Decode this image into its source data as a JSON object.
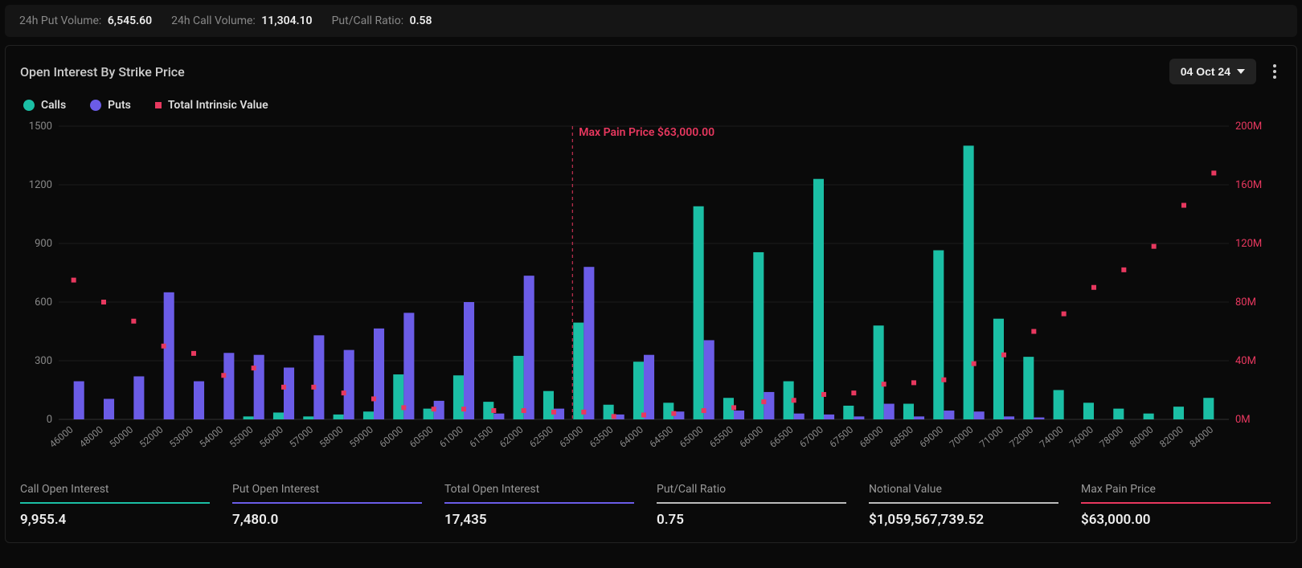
{
  "top_metrics": {
    "put_volume_label": "24h Put Volume:",
    "put_volume_value": "6,545.60",
    "call_volume_label": "24h Call Volume:",
    "call_volume_value": "11,304.10",
    "pc_ratio_label": "Put/Call Ratio:",
    "pc_ratio_value": "0.58"
  },
  "panel": {
    "title": "Open Interest By Strike Price",
    "date_selected": "04 Oct 24"
  },
  "legend": {
    "calls": "Calls",
    "puts": "Puts",
    "tiv": "Total Intrinsic Value"
  },
  "chart": {
    "type": "bar+scatter",
    "left_y": {
      "min": 0,
      "max": 1500,
      "step": 300,
      "ticks": [
        0,
        300,
        600,
        900,
        1200,
        1500
      ]
    },
    "right_y": {
      "min": 0,
      "max": 200,
      "step": 40,
      "ticks": [
        0,
        40,
        80,
        120,
        160,
        200
      ],
      "suffix": "M"
    },
    "max_pain_label": "Max Pain Price $63,000.00",
    "max_pain_strike": "63000",
    "colors": {
      "calls": "#1bbfa5",
      "puts": "#6b5ce7",
      "tiv": "#e8385f",
      "grid": "#1c1c1c",
      "axis_text": "#888",
      "bg": "#0a0a0a"
    },
    "bar_group_gap_ratio": 0.3,
    "strikes": [
      "46000",
      "48000",
      "50000",
      "52000",
      "53000",
      "54000",
      "55000",
      "56000",
      "57000",
      "58000",
      "59000",
      "60000",
      "60500",
      "61000",
      "61500",
      "62000",
      "62500",
      "63000",
      "63500",
      "64000",
      "64500",
      "65000",
      "65500",
      "66000",
      "66500",
      "67000",
      "67500",
      "68000",
      "68500",
      "69000",
      "70000",
      "71000",
      "72000",
      "74000",
      "76000",
      "78000",
      "80000",
      "82000",
      "84000"
    ],
    "calls": [
      0,
      0,
      0,
      0,
      0,
      0,
      15,
      35,
      15,
      25,
      40,
      230,
      55,
      225,
      90,
      325,
      145,
      495,
      75,
      295,
      85,
      1090,
      110,
      855,
      195,
      1230,
      70,
      480,
      80,
      865,
      1400,
      515,
      320,
      150,
      85,
      55,
      30,
      65,
      110
    ],
    "puts": [
      195,
      105,
      220,
      650,
      195,
      340,
      330,
      265,
      430,
      355,
      465,
      545,
      95,
      600,
      30,
      735,
      55,
      780,
      25,
      330,
      40,
      405,
      45,
      140,
      30,
      25,
      15,
      80,
      15,
      45,
      40,
      15,
      10,
      0,
      0,
      0,
      0,
      0,
      0
    ],
    "tiv": [
      95,
      80,
      67,
      50,
      45,
      30,
      35,
      22,
      22,
      18,
      14,
      8,
      7,
      7,
      6,
      6,
      5,
      5,
      2,
      3,
      4,
      6,
      8,
      12,
      13,
      17,
      18,
      24,
      25,
      27,
      38,
      44,
      60,
      72,
      90,
      102,
      118,
      146,
      168
    ]
  },
  "stats": [
    {
      "label": "Call Open Interest",
      "value": "9,955.4",
      "color": "#1bbfa5"
    },
    {
      "label": "Put Open Interest",
      "value": "7,480.0",
      "color": "#6b5ce7"
    },
    {
      "label": "Total Open Interest",
      "value": "17,435",
      "color": "#6b5ce7"
    },
    {
      "label": "Put/Call Ratio",
      "value": "0.75",
      "color": "#bbbbbb"
    },
    {
      "label": "Notional Value",
      "value": "$1,059,567,739.52",
      "color": "#bbbbbb"
    },
    {
      "label": "Max Pain Price",
      "value": "$63,000.00",
      "color": "#e8385f"
    }
  ]
}
